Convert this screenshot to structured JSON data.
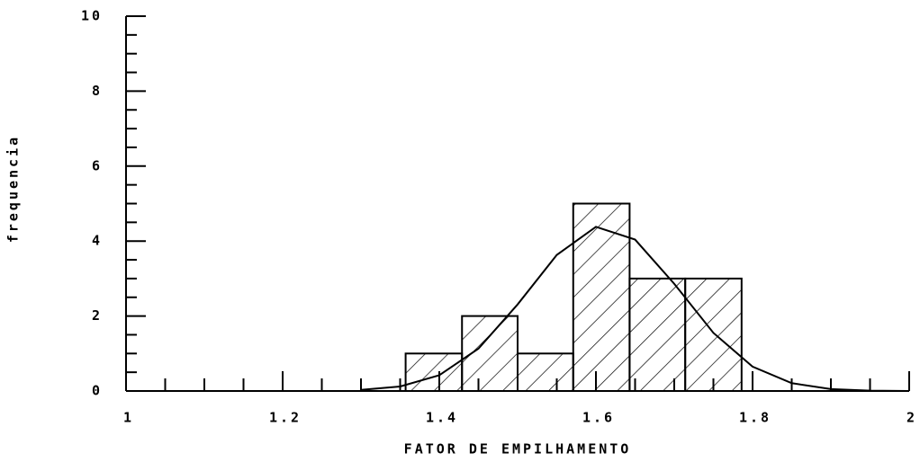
{
  "chart_data": {
    "type": "histogram",
    "xlabel": "FATOR DE EMPILHAMENTO",
    "ylabel": "frequencia",
    "bins": [
      1.357,
      1.429,
      1.5,
      1.571,
      1.643,
      1.714,
      1.786
    ],
    "counts": [
      1,
      2,
      1,
      5,
      3,
      3
    ],
    "curve": {
      "x": [
        1.3,
        1.35,
        1.4,
        1.45,
        1.5,
        1.55,
        1.6,
        1.65,
        1.7,
        1.75,
        1.8,
        1.85,
        1.9,
        1.95,
        2.0
      ],
      "values": [
        0.03,
        0.12,
        0.42,
        1.13,
        2.31,
        3.63,
        4.38,
        4.04,
        2.86,
        1.55,
        0.65,
        0.21,
        0.05,
        0.01,
        0
      ]
    },
    "color": "#000000",
    "xlim": [
      1,
      2
    ],
    "xticks": [
      1,
      1.2,
      1.4,
      1.6,
      1.8,
      2
    ],
    "ylim": [
      0,
      10
    ],
    "yticks": [
      0,
      2,
      4,
      6,
      8,
      10
    ],
    "grid": false
  }
}
